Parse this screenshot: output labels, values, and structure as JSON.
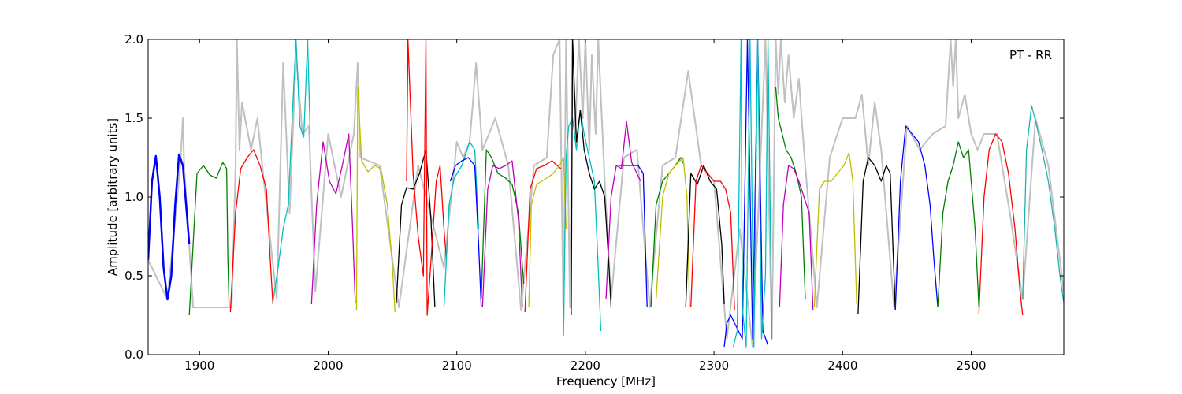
{
  "chart_data": {
    "type": "line",
    "title": "",
    "xlabel": "Frequency [MHz]",
    "ylabel": "Amplitude [arbitrary units]",
    "annotation": "PT - RR",
    "legend_position": "top-right",
    "grid": false,
    "xlim": [
      1860,
      2572
    ],
    "ylim": [
      0.0,
      2.0
    ],
    "x_ticks": [
      1900,
      2000,
      2100,
      2200,
      2300,
      2400,
      2500
    ],
    "x_tick_labels": [
      "1900",
      "2000",
      "2100",
      "2200",
      "2300",
      "2400",
      "2500"
    ],
    "y_ticks": [
      0.0,
      0.5,
      1.0,
      1.5,
      2.0
    ],
    "y_tick_labels": [
      "0.0",
      "0.5",
      "1.0",
      "1.5",
      "2.0"
    ],
    "background_trace_color": "#c0c0c0",
    "series": [
      {
        "color": "#0000ff",
        "x": [
          1860,
          1863,
          1866,
          1869,
          1872,
          1875,
          1878,
          1881,
          1884,
          1887,
          1890,
          1892
        ],
        "y": [
          0.6,
          1.1,
          1.26,
          1.0,
          0.55,
          0.35,
          0.5,
          0.95,
          1.27,
          1.2,
          0.9,
          0.7
        ]
      },
      {
        "color": "#008000",
        "x": [
          1892,
          1895,
          1898,
          1903,
          1908,
          1913,
          1918,
          1921,
          1922,
          1923
        ],
        "y": [
          0.25,
          0.7,
          1.15,
          1.2,
          1.14,
          1.12,
          1.22,
          1.18,
          0.6,
          0.3
        ]
      },
      {
        "color": "#ff0000",
        "x": [
          1924,
          1928,
          1932,
          1937,
          1942,
          1947,
          1952,
          1955,
          1957
        ],
        "y": [
          0.27,
          0.9,
          1.18,
          1.25,
          1.3,
          1.2,
          1.05,
          0.6,
          0.32
        ]
      },
      {
        "color": "#00bfbf",
        "x": [
          1957,
          1961,
          1965,
          1969,
          1972,
          1975,
          1978,
          1981,
          1984,
          1986
        ],
        "y": [
          0.33,
          0.55,
          0.8,
          0.95,
          1.5,
          2.0,
          1.45,
          1.38,
          2.0,
          1.4
        ]
      },
      {
        "color": "#bf00bf",
        "x": [
          1987,
          1991,
          1996,
          2001,
          2006,
          2011,
          2016,
          2019,
          2021
        ],
        "y": [
          0.32,
          0.95,
          1.35,
          1.1,
          1.02,
          1.2,
          1.4,
          0.8,
          0.33
        ]
      },
      {
        "color": "#bfbf00",
        "x": [
          2022,
          2023,
          2026,
          2031,
          2036,
          2041,
          2046,
          2050,
          2052
        ],
        "y": [
          0.28,
          1.7,
          1.23,
          1.16,
          1.2,
          1.18,
          0.95,
          0.55,
          0.27
        ]
      },
      {
        "color": "#000000",
        "x": [
          2053,
          2057,
          2061,
          2066,
          2071,
          2076,
          2080,
          2083
        ],
        "y": [
          0.33,
          0.95,
          1.06,
          1.05,
          1.15,
          1.3,
          0.85,
          0.3
        ]
      },
      {
        "color": "#ff0000",
        "x": [
          2061,
          2062,
          2066,
          2070,
          2074,
          2076,
          2077,
          2080,
          2084,
          2087,
          2090,
          2092
        ],
        "y": [
          1.1,
          2.0,
          1.15,
          0.75,
          0.5,
          2.0,
          0.25,
          0.6,
          1.1,
          1.2,
          0.8,
          0.6
        ]
      },
      {
        "color": "#00bfbf",
        "x": [
          2090,
          2094,
          2098,
          2104,
          2110,
          2114,
          2117
        ],
        "y": [
          0.3,
          0.95,
          1.12,
          1.2,
          1.35,
          1.3,
          0.8
        ]
      },
      {
        "color": "#0000ff",
        "x": [
          2095,
          2099,
          2104,
          2109,
          2114,
          2117,
          2119
        ],
        "y": [
          1.1,
          1.2,
          1.23,
          1.25,
          1.2,
          0.7,
          0.3
        ]
      },
      {
        "color": "#008000",
        "x": [
          2119,
          2123,
          2127,
          2132,
          2138,
          2143,
          2148,
          2152
        ],
        "y": [
          0.35,
          1.3,
          1.25,
          1.15,
          1.12,
          1.08,
          0.9,
          0.45
        ]
      },
      {
        "color": "#bf00bf",
        "x": [
          2120,
          2124,
          2128,
          2133,
          2138,
          2143,
          2148,
          2151
        ],
        "y": [
          0.3,
          1.05,
          1.2,
          1.18,
          1.2,
          1.23,
          0.85,
          0.3
        ]
      },
      {
        "color": "#ff0000",
        "x": [
          2153,
          2157,
          2162,
          2168,
          2174,
          2178,
          2181
        ],
        "y": [
          0.27,
          1.05,
          1.18,
          1.2,
          1.23,
          1.2,
          1.18
        ]
      },
      {
        "color": "#bfbf00",
        "x": [
          2156,
          2158,
          2162,
          2166,
          2170,
          2175,
          2180,
          2183,
          2185
        ],
        "y": [
          0.3,
          0.95,
          1.08,
          1.1,
          1.12,
          1.15,
          1.2,
          1.25,
          0.8
        ]
      },
      {
        "color": "#00bfbf",
        "x": [
          2183,
          2185,
          2187,
          2190,
          2193,
          2196,
          2199,
          2203,
          2207,
          2210,
          2212
        ],
        "y": [
          0.12,
          1.25,
          1.45,
          1.5,
          1.3,
          1.55,
          1.4,
          1.25,
          1.1,
          0.55,
          0.15
        ]
      },
      {
        "color": "#000000",
        "x": [
          2189,
          2190,
          2193,
          2196,
          2199,
          2203,
          2207,
          2211,
          2215,
          2218,
          2220
        ],
        "y": [
          0.25,
          2.0,
          1.35,
          1.55,
          1.3,
          1.15,
          1.05,
          1.1,
          1.0,
          0.6,
          0.3
        ]
      },
      {
        "color": "#bf00bf",
        "x": [
          2216,
          2220,
          2224,
          2228,
          2232,
          2236,
          2240,
          2243
        ],
        "y": [
          0.35,
          1.0,
          1.2,
          1.18,
          1.48,
          1.22,
          1.15,
          1.1
        ]
      },
      {
        "color": "#0000ff",
        "x": [
          2226,
          2230,
          2236,
          2241,
          2245,
          2248
        ],
        "y": [
          1.2,
          1.2,
          1.2,
          1.2,
          1.15,
          0.3
        ]
      },
      {
        "color": "#008000",
        "x": [
          2251,
          2255,
          2260,
          2265,
          2270,
          2274,
          2277
        ],
        "y": [
          0.3,
          0.95,
          1.1,
          1.15,
          1.2,
          1.25,
          1.2
        ]
      },
      {
        "color": "#bfbf00",
        "x": [
          2255,
          2260,
          2265,
          2270,
          2276,
          2279,
          2281
        ],
        "y": [
          0.35,
          1.0,
          1.15,
          1.2,
          1.25,
          1.0,
          0.3
        ]
      },
      {
        "color": "#000000",
        "x": [
          2278,
          2282,
          2287,
          2292,
          2297,
          2302,
          2306,
          2308
        ],
        "y": [
          0.3,
          1.15,
          1.08,
          1.2,
          1.1,
          1.05,
          0.7,
          0.32
        ]
      },
      {
        "color": "#ff0000",
        "x": [
          2282,
          2286,
          2290,
          2295,
          2300,
          2305,
          2309,
          2313,
          2316
        ],
        "y": [
          0.3,
          1.1,
          1.2,
          1.15,
          1.1,
          1.1,
          1.05,
          0.9,
          0.28
        ]
      },
      {
        "color": "#0000ff",
        "x": [
          2308,
          2310,
          2313,
          2316,
          2319,
          2322,
          2326,
          2330,
          2334,
          2338,
          2342
        ],
        "y": [
          0.05,
          0.2,
          0.25,
          0.2,
          0.15,
          0.1,
          2.0,
          0.1,
          2.0,
          0.15,
          0.06
        ]
      },
      {
        "color": "#00bfbf",
        "x": [
          2315,
          2318,
          2321,
          2322,
          2325,
          2328,
          2331,
          2334,
          2337,
          2340,
          2342,
          2345
        ],
        "y": [
          0.05,
          0.15,
          2.0,
          0.3,
          0.05,
          2.0,
          0.05,
          2.0,
          0.1,
          0.5,
          2.0,
          0.1
        ]
      },
      {
        "color": "#008000",
        "x": [
          2348,
          2350,
          2353,
          2356,
          2360,
          2364,
          2368,
          2371
        ],
        "y": [
          1.7,
          1.5,
          1.4,
          1.3,
          1.25,
          1.15,
          1.0,
          0.35
        ]
      },
      {
        "color": "#bf00bf",
        "x": [
          2351,
          2354,
          2358,
          2362,
          2366,
          2370,
          2374,
          2377
        ],
        "y": [
          0.3,
          0.95,
          1.2,
          1.18,
          1.1,
          1.0,
          0.9,
          0.28
        ]
      },
      {
        "color": "#bfbf00",
        "x": [
          2378,
          2382,
          2386,
          2391,
          2396,
          2401,
          2405,
          2408,
          2411
        ],
        "y": [
          0.3,
          1.05,
          1.1,
          1.1,
          1.15,
          1.2,
          1.28,
          1.1,
          0.32
        ]
      },
      {
        "color": "#000000",
        "x": [
          2412,
          2416,
          2420,
          2425,
          2430,
          2434,
          2437,
          2441
        ],
        "y": [
          0.26,
          1.1,
          1.25,
          1.2,
          1.1,
          1.2,
          1.15,
          0.28
        ]
      },
      {
        "color": "#0000ff",
        "x": [
          2441,
          2445,
          2449,
          2454,
          2459,
          2464,
          2468,
          2471,
          2474
        ],
        "y": [
          0.28,
          1.1,
          1.45,
          1.4,
          1.35,
          1.2,
          0.95,
          0.6,
          0.3
        ]
      },
      {
        "color": "#008000",
        "x": [
          2474,
          2478,
          2482,
          2486,
          2490,
          2494,
          2498,
          2503,
          2506
        ],
        "y": [
          0.3,
          0.9,
          1.1,
          1.2,
          1.35,
          1.25,
          1.3,
          0.8,
          0.3
        ]
      },
      {
        "color": "#ff0000",
        "x": [
          2506,
          2510,
          2514,
          2519,
          2524,
          2529,
          2534,
          2538,
          2540
        ],
        "y": [
          0.26,
          1.0,
          1.3,
          1.4,
          1.35,
          1.15,
          0.8,
          0.4,
          0.25
        ]
      },
      {
        "color": "#20b2aa",
        "x": [
          2540,
          2543,
          2547,
          2551,
          2555,
          2560,
          2565,
          2569,
          2572
        ],
        "y": [
          0.35,
          1.3,
          1.58,
          1.45,
          1.3,
          1.1,
          0.8,
          0.5,
          0.33
        ]
      }
    ],
    "background_trace": {
      "x": [
        1860,
        1875,
        1885,
        1887,
        1888,
        1895,
        1925,
        1928,
        1929,
        1931,
        1933,
        1940,
        1945,
        1950,
        1960,
        1965,
        1970,
        1975,
        1980,
        1985,
        1990,
        2000,
        2010,
        2020,
        2023,
        2025,
        2040,
        2055,
        2070,
        2090,
        2100,
        2105,
        2110,
        2115,
        2120,
        2130,
        2140,
        2150,
        2160,
        2170,
        2175,
        2180,
        2183,
        2185,
        2188,
        2190,
        2192,
        2195,
        2198,
        2200,
        2203,
        2205,
        2208,
        2210,
        2215,
        2220,
        2230,
        2240,
        2250,
        2260,
        2270,
        2280,
        2290,
        2300,
        2310,
        2320,
        2330,
        2340,
        2345,
        2348,
        2350,
        2352,
        2355,
        2358,
        2362,
        2366,
        2370,
        2380,
        2390,
        2400,
        2410,
        2415,
        2420,
        2425,
        2430,
        2440,
        2450,
        2460,
        2470,
        2480,
        2484,
        2486,
        2488,
        2490,
        2495,
        2500,
        2505,
        2510,
        2520,
        2530,
        2540,
        2550,
        2560,
        2572
      ],
      "y": [
        0.6,
        0.35,
        1.2,
        1.5,
        1.2,
        0.3,
        0.3,
        1.2,
        2.0,
        1.3,
        1.6,
        1.3,
        1.5,
        1.1,
        0.35,
        1.85,
        0.9,
        1.9,
        1.4,
        1.45,
        0.4,
        1.4,
        1.0,
        1.4,
        1.85,
        1.25,
        1.2,
        0.3,
        1.2,
        0.55,
        1.35,
        1.25,
        1.35,
        1.85,
        1.3,
        1.5,
        1.2,
        0.28,
        1.2,
        1.25,
        1.9,
        2.0,
        0.2,
        2.0,
        0.3,
        2.0,
        1.4,
        2.0,
        1.5,
        2.0,
        1.3,
        1.9,
        1.4,
        2.0,
        1.1,
        0.35,
        1.25,
        1.3,
        0.3,
        1.2,
        1.25,
        1.8,
        1.2,
        1.1,
        0.1,
        0.8,
        0.05,
        2.0,
        0.1,
        2.0,
        1.65,
        2.0,
        1.6,
        1.9,
        1.5,
        1.75,
        1.3,
        0.3,
        1.25,
        1.5,
        1.5,
        1.65,
        1.2,
        1.6,
        1.3,
        0.3,
        1.45,
        1.3,
        1.4,
        1.45,
        2.0,
        1.7,
        2.0,
        1.5,
        1.65,
        1.4,
        1.3,
        1.4,
        1.4,
        0.9,
        0.35,
        1.5,
        1.2,
        0.4
      ]
    }
  }
}
